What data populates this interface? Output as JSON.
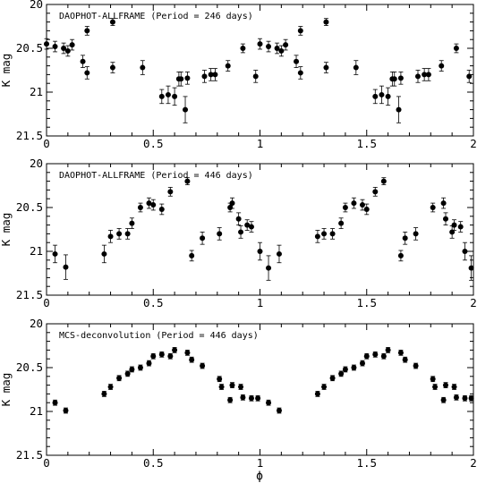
{
  "figure": {
    "xlabel": "ϕ"
  },
  "chart_data": [
    {
      "type": "scatter",
      "title": "DAOPHOT-ALLFRAME (Period = 246 days)",
      "xlabel": "",
      "ylabel": "K mag",
      "xlim": [
        0,
        2
      ],
      "ylim": [
        21.5,
        20
      ],
      "y_inverted": true,
      "x_ticks": [
        "0",
        "0.5",
        "1",
        "1.5",
        "2"
      ],
      "y_ticks": [
        "20",
        "20.5",
        "21",
        "21.5"
      ],
      "series": [
        {
          "x": [
            0.0,
            0.04,
            0.08,
            0.1,
            0.12,
            0.17,
            0.19,
            0.19,
            0.31,
            0.31,
            0.45,
            0.54,
            0.57,
            0.6,
            0.62,
            0.63,
            0.65,
            0.66,
            0.74,
            0.77,
            0.79,
            0.85,
            0.92,
            0.98,
            1.0,
            1.04,
            1.08,
            1.1,
            1.12,
            1.17,
            1.19,
            1.19,
            1.31,
            1.31,
            1.45,
            1.54,
            1.57,
            1.6,
            1.62,
            1.63,
            1.65,
            1.66,
            1.74,
            1.77,
            1.79,
            1.85,
            1.92,
            1.98
          ],
          "y": [
            20.45,
            20.48,
            20.5,
            20.53,
            20.46,
            20.65,
            20.3,
            20.78,
            20.72,
            20.2,
            20.72,
            21.05,
            21.03,
            21.05,
            20.85,
            20.85,
            21.2,
            20.84,
            20.82,
            20.8,
            20.8,
            20.7,
            20.5,
            20.82,
            20.45,
            20.48,
            20.5,
            20.53,
            20.46,
            20.65,
            20.3,
            20.78,
            20.72,
            20.2,
            20.72,
            21.05,
            21.03,
            21.05,
            20.85,
            20.85,
            21.2,
            20.84,
            20.82,
            20.8,
            20.8,
            20.7,
            20.5,
            20.82
          ],
          "err": [
            0.06,
            0.06,
            0.06,
            0.06,
            0.06,
            0.07,
            0.05,
            0.07,
            0.06,
            0.04,
            0.08,
            0.08,
            0.1,
            0.1,
            0.08,
            0.08,
            0.15,
            0.07,
            0.07,
            0.07,
            0.07,
            0.06,
            0.05,
            0.07,
            0.06,
            0.06,
            0.06,
            0.06,
            0.06,
            0.07,
            0.05,
            0.07,
            0.06,
            0.04,
            0.08,
            0.08,
            0.1,
            0.1,
            0.08,
            0.08,
            0.15,
            0.07,
            0.07,
            0.07,
            0.07,
            0.06,
            0.05,
            0.07
          ]
        }
      ]
    },
    {
      "type": "scatter",
      "title": "DAOPHOT-ALLFRAME (Period = 446 days)",
      "xlabel": "",
      "ylabel": "K mag",
      "xlim": [
        0,
        2
      ],
      "ylim": [
        21.5,
        20
      ],
      "y_inverted": true,
      "x_ticks": [
        "0",
        "0.5",
        "1",
        "1.5",
        "2"
      ],
      "y_ticks": [
        "20",
        "20.5",
        "21",
        "21.5"
      ],
      "series": [
        {
          "x": [
            0.04,
            0.09,
            0.27,
            0.3,
            0.34,
            0.38,
            0.4,
            0.44,
            0.48,
            0.5,
            0.54,
            0.58,
            0.66,
            0.68,
            0.73,
            0.81,
            0.86,
            0.87,
            0.9,
            0.91,
            0.94,
            0.96,
            1.0,
            1.04,
            1.09,
            1.27,
            1.3,
            1.34,
            1.38,
            1.4,
            1.44,
            1.48,
            1.5,
            1.54,
            1.58,
            1.66,
            1.68,
            1.73,
            1.81,
            1.86,
            1.87,
            1.9,
            1.91,
            1.94,
            1.96,
            1.99
          ],
          "y": [
            21.03,
            21.18,
            21.03,
            20.83,
            20.8,
            20.8,
            20.68,
            20.5,
            20.45,
            20.47,
            20.52,
            20.32,
            20.2,
            21.05,
            20.85,
            20.8,
            20.5,
            20.45,
            20.63,
            20.78,
            20.7,
            20.72,
            21.0,
            21.19,
            21.03,
            20.83,
            20.8,
            20.8,
            20.68,
            20.5,
            20.45,
            20.47,
            20.52,
            20.32,
            20.2,
            21.05,
            20.85,
            20.8,
            20.5,
            20.45,
            20.63,
            20.78,
            20.7,
            20.72,
            21.0,
            21.19
          ],
          "err": [
            0.1,
            0.14,
            0.1,
            0.07,
            0.06,
            0.06,
            0.06,
            0.05,
            0.06,
            0.06,
            0.06,
            0.05,
            0.04,
            0.06,
            0.07,
            0.07,
            0.05,
            0.06,
            0.07,
            0.07,
            0.06,
            0.06,
            0.1,
            0.14,
            0.1,
            0.07,
            0.06,
            0.06,
            0.06,
            0.05,
            0.06,
            0.06,
            0.06,
            0.05,
            0.04,
            0.06,
            0.07,
            0.07,
            0.05,
            0.06,
            0.07,
            0.07,
            0.06,
            0.06,
            0.1,
            0.14
          ]
        }
      ]
    },
    {
      "type": "scatter",
      "title": "MCS-deconvolution (Period = 446 days)",
      "xlabel": "ϕ",
      "ylabel": "K mag",
      "xlim": [
        0,
        2
      ],
      "ylim": [
        21.5,
        20
      ],
      "y_inverted": true,
      "x_ticks": [
        "0",
        "0.5",
        "1",
        "1.5",
        "2"
      ],
      "y_ticks": [
        "20",
        "20.5",
        "21",
        "21.5"
      ],
      "series": [
        {
          "x": [
            0.04,
            0.09,
            0.27,
            0.3,
            0.34,
            0.38,
            0.4,
            0.44,
            0.48,
            0.5,
            0.54,
            0.58,
            0.6,
            0.66,
            0.68,
            0.73,
            0.81,
            0.82,
            0.86,
            0.87,
            0.91,
            0.92,
            0.96,
            0.99,
            1.04,
            1.09,
            1.27,
            1.3,
            1.34,
            1.38,
            1.4,
            1.44,
            1.48,
            1.5,
            1.54,
            1.58,
            1.6,
            1.66,
            1.68,
            1.73,
            1.81,
            1.82,
            1.86,
            1.87,
            1.91,
            1.92,
            1.96,
            1.99
          ],
          "y": [
            20.9,
            20.99,
            20.8,
            20.72,
            20.62,
            20.57,
            20.52,
            20.5,
            20.45,
            20.37,
            20.35,
            20.37,
            20.3,
            20.33,
            20.41,
            20.48,
            20.63,
            20.72,
            20.87,
            20.7,
            20.72,
            20.84,
            20.85,
            20.85,
            20.9,
            20.99,
            20.8,
            20.72,
            20.62,
            20.57,
            20.52,
            20.5,
            20.45,
            20.37,
            20.35,
            20.37,
            20.3,
            20.33,
            20.41,
            20.48,
            20.63,
            20.72,
            20.87,
            20.7,
            20.72,
            20.84,
            20.85,
            20.85
          ],
          "err": [
            0.03,
            0.03,
            0.03,
            0.03,
            0.03,
            0.03,
            0.03,
            0.03,
            0.03,
            0.03,
            0.03,
            0.03,
            0.03,
            0.03,
            0.03,
            0.03,
            0.03,
            0.03,
            0.03,
            0.03,
            0.03,
            0.03,
            0.03,
            0.03,
            0.03,
            0.03,
            0.03,
            0.03,
            0.03,
            0.03,
            0.03,
            0.03,
            0.03,
            0.03,
            0.03,
            0.03,
            0.03,
            0.03,
            0.03,
            0.03,
            0.03,
            0.03,
            0.03,
            0.03,
            0.03,
            0.03,
            0.03,
            0.03
          ]
        }
      ]
    }
  ]
}
